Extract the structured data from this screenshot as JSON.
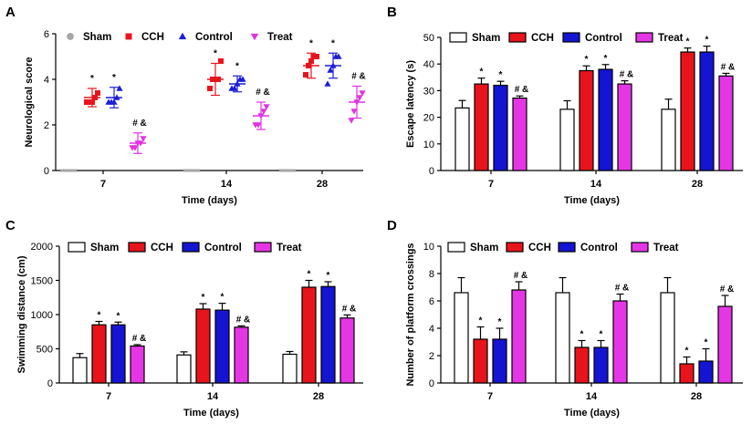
{
  "figure": {
    "colors": {
      "Sham": "#a6a6a6",
      "CCH": "#e8141b",
      "Control": "#1c1fd6",
      "Treat": "#e033e0"
    },
    "bar_colors": {
      "Sham": "#ffffff",
      "CCH": "#e8141b",
      "Control": "#1414d2",
      "Treat": "#e536e5"
    }
  },
  "chart_data": [
    {
      "panel": "A",
      "type": "scatter",
      "ylabel": "Neurological score",
      "xlabel": "Time (days)",
      "ylim": [
        0,
        6
      ],
      "yticks": [
        "0",
        "2",
        "4",
        "6"
      ],
      "categories": [
        "7",
        "14",
        "28"
      ],
      "legend": [
        "Sham",
        "CCH",
        "Control",
        "Treat"
      ],
      "series": [
        {
          "name": "Sham",
          "marker": "circle",
          "points": [
            [
              0,
              0,
              0,
              0,
              0
            ],
            [
              0,
              0,
              0,
              0,
              0
            ],
            [
              0,
              0,
              0,
              0,
              0
            ]
          ],
          "mean": [
            0,
            0,
            0
          ],
          "sd": [
            0,
            0,
            0
          ],
          "annot": [
            "",
            "",
            ""
          ]
        },
        {
          "name": "CCH",
          "marker": "square",
          "points": [
            [
              3.0,
              3.0,
              3.0,
              3.2,
              3.4
            ],
            [
              3.6,
              4.0,
              4.0,
              4.0,
              4.8
            ],
            [
              4.2,
              4.6,
              4.8,
              5.0,
              5.0
            ]
          ],
          "mean": [
            3.2,
            4.0,
            4.6
          ],
          "sd": [
            0.4,
            0.7,
            0.55
          ],
          "annot": [
            "*",
            "*",
            "*"
          ]
        },
        {
          "name": "Control",
          "marker": "triangle-up",
          "points": [
            [
              3.0,
              3.0,
              3.0,
              3.2,
              3.6
            ],
            [
              3.6,
              3.6,
              3.8,
              4.0,
              4.0
            ],
            [
              3.8,
              4.4,
              4.6,
              5.0,
              5.0
            ]
          ],
          "mean": [
            3.2,
            3.8,
            4.6
          ],
          "sd": [
            0.45,
            0.35,
            0.55
          ],
          "annot": [
            "*",
            "*",
            "*"
          ]
        },
        {
          "name": "Treat",
          "marker": "triangle-down",
          "points": [
            [
              1.0,
              1.0,
              1.2,
              1.2,
              1.4
            ],
            [
              2.0,
              2.0,
              2.4,
              2.6,
              2.8
            ],
            [
              2.2,
              2.6,
              3.0,
              3.2,
              3.4
            ]
          ],
          "mean": [
            1.2,
            2.4,
            3.0
          ],
          "sd": [
            0.45,
            0.6,
            0.7
          ],
          "annot": [
            "# &",
            "# &",
            "# &"
          ]
        }
      ]
    },
    {
      "panel": "B",
      "type": "bar",
      "ylabel": "Escape latency (s)",
      "xlabel": "Time (days)",
      "ylim": [
        0,
        50
      ],
      "yticks": [
        "0",
        "10",
        "20",
        "30",
        "40",
        "50"
      ],
      "categories": [
        "7",
        "14",
        "28"
      ],
      "legend": [
        "Sham",
        "CCH",
        "Control",
        "Treat"
      ],
      "series": [
        {
          "name": "Sham",
          "values": [
            23.5,
            23.0,
            23.0
          ],
          "err": [
            2.8,
            3.2,
            3.8
          ],
          "annot": [
            "",
            "",
            ""
          ]
        },
        {
          "name": "CCH",
          "values": [
            32.5,
            37.5,
            44.5
          ],
          "err": [
            2.2,
            1.8,
            1.5
          ],
          "annot": [
            "*",
            "*",
            "*"
          ]
        },
        {
          "name": "Control",
          "values": [
            32.0,
            38.0,
            44.5
          ],
          "err": [
            1.5,
            1.8,
            2.2
          ],
          "annot": [
            "*",
            "*",
            "*"
          ]
        },
        {
          "name": "Treat",
          "values": [
            27.2,
            32.5,
            35.5
          ],
          "err": [
            0.8,
            1.2,
            1.0
          ],
          "annot": [
            "# &",
            "# &",
            "# &"
          ]
        }
      ]
    },
    {
      "panel": "C",
      "type": "bar",
      "ylabel": "Swimming distance (cm)",
      "xlabel": "Time (days)",
      "ylim": [
        0,
        2000
      ],
      "yticks": [
        "0",
        "500",
        "1000",
        "1500",
        "2000"
      ],
      "categories": [
        "7",
        "14",
        "28"
      ],
      "legend": [
        "Sham",
        "CCH",
        "Control",
        "Treat"
      ],
      "series": [
        {
          "name": "Sham",
          "values": [
            370,
            410,
            420
          ],
          "err": [
            60,
            45,
            40
          ],
          "annot": [
            "",
            "",
            ""
          ]
        },
        {
          "name": "CCH",
          "values": [
            850,
            1080,
            1400
          ],
          "err": [
            50,
            80,
            100
          ],
          "annot": [
            "*",
            "*",
            "*"
          ]
        },
        {
          "name": "Control",
          "values": [
            850,
            1065,
            1410
          ],
          "err": [
            40,
            100,
            70
          ],
          "annot": [
            "*",
            "*",
            "*"
          ]
        },
        {
          "name": "Treat",
          "values": [
            540,
            815,
            950
          ],
          "err": [
            20,
            20,
            45
          ],
          "annot": [
            "# &",
            "# &",
            "# &"
          ]
        }
      ]
    },
    {
      "panel": "D",
      "type": "bar",
      "ylabel": "Number of platform crossings",
      "xlabel": "Time (days)",
      "ylim": [
        0,
        10
      ],
      "yticks": [
        "0",
        "2",
        "4",
        "6",
        "8",
        "10"
      ],
      "categories": [
        "7",
        "14",
        "28"
      ],
      "legend": [
        "Sham",
        "CCH",
        "Control",
        "Treat"
      ],
      "series": [
        {
          "name": "Sham",
          "values": [
            6.6,
            6.6,
            6.6
          ],
          "err": [
            1.1,
            1.1,
            1.1
          ],
          "annot": [
            "",
            "",
            ""
          ]
        },
        {
          "name": "CCH",
          "values": [
            3.2,
            2.6,
            1.4
          ],
          "err": [
            0.9,
            0.5,
            0.5
          ],
          "annot": [
            "*",
            "*",
            "*"
          ]
        },
        {
          "name": "Control",
          "values": [
            3.2,
            2.6,
            1.6
          ],
          "err": [
            0.8,
            0.5,
            0.9
          ],
          "annot": [
            "*",
            "*",
            "*"
          ]
        },
        {
          "name": "Treat",
          "values": [
            6.8,
            6.0,
            5.6
          ],
          "err": [
            0.6,
            0.5,
            0.8
          ],
          "annot": [
            "# &",
            "# &",
            "# &"
          ]
        }
      ]
    }
  ]
}
